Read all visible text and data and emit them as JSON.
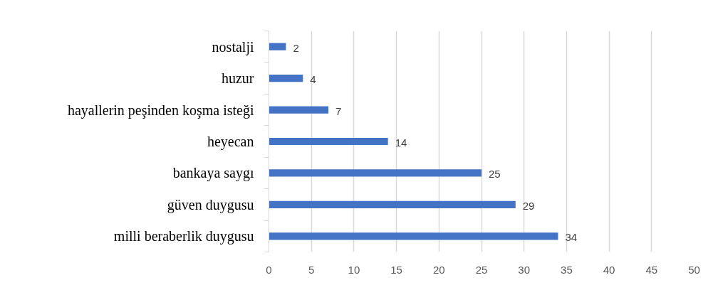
{
  "chart_data": {
    "type": "bar",
    "orientation": "horizontal",
    "categories": [
      "nostalji",
      "huzur",
      "hayallerin peşinden koşma isteği",
      "heyecan",
      "bankaya saygı",
      "güven duygusu",
      "milli beraberlik duygusu"
    ],
    "values": [
      2,
      4,
      7,
      14,
      25,
      29,
      34
    ],
    "color": "#4472c4",
    "xlim": [
      0,
      50
    ],
    "xticks": [
      0,
      5,
      10,
      15,
      20,
      25,
      30,
      35,
      40,
      45,
      50
    ],
    "grid": "x",
    "data_labels": true
  }
}
